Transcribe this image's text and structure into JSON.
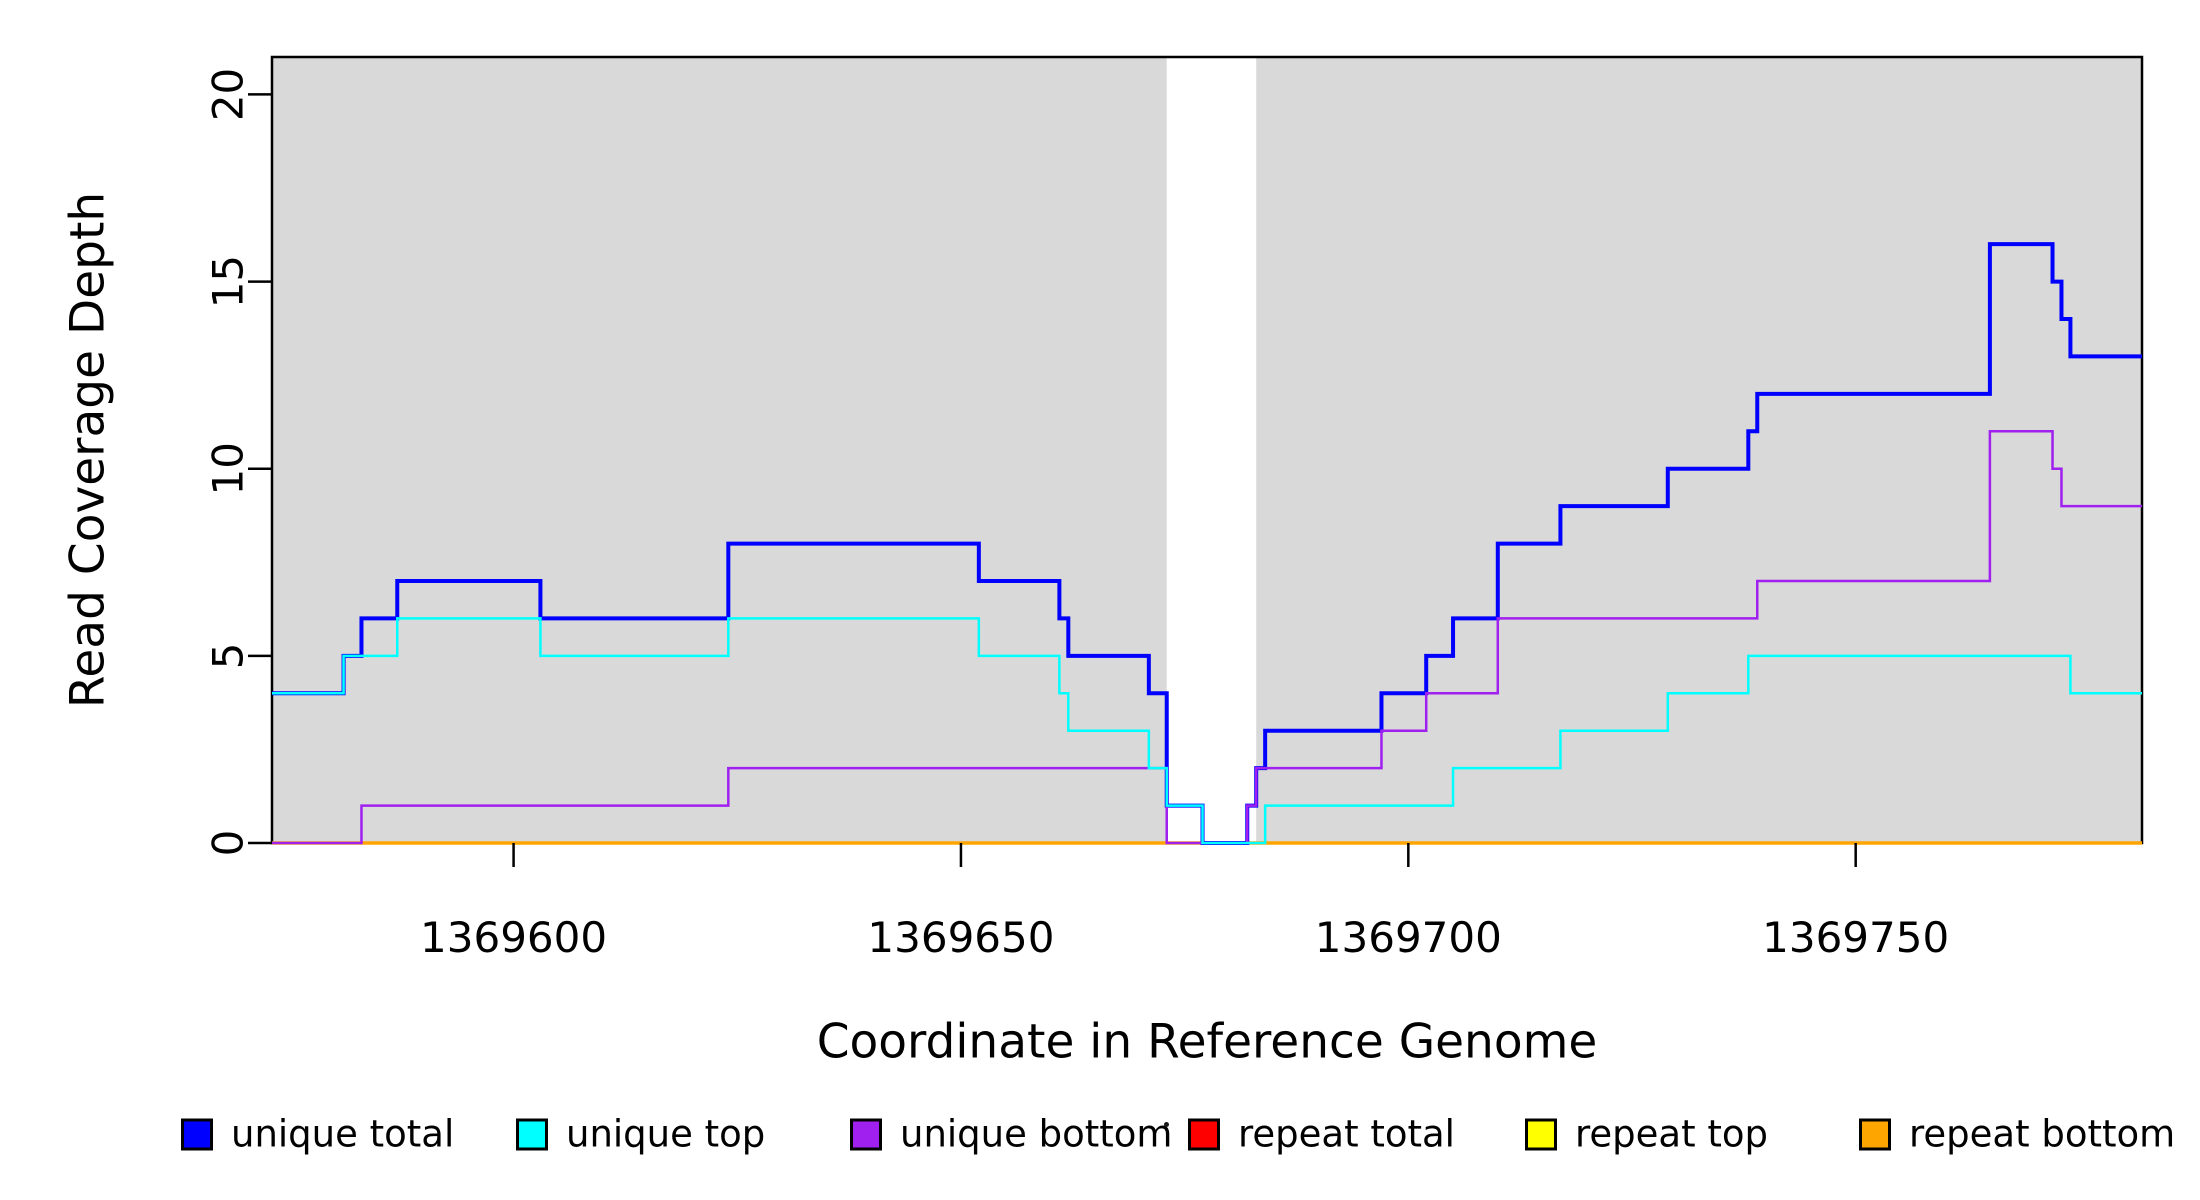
{
  "figure": {
    "background": "#FFFFFF",
    "shade_color": "#D9D9D9",
    "box_color": "#000000",
    "tick_color": "#000000",
    "text_color": "#000000"
  },
  "chart_data": {
    "type": "line",
    "subtype": "step",
    "title": "",
    "xlabel": "Coordinate in Reference Genome",
    "ylabel": "Read Coverage Depth",
    "xlim": [
      1369573,
      1369782
    ],
    "ylim": [
      0,
      21
    ],
    "x_ticks": [
      1369600,
      1369650,
      1369700,
      1369750
    ],
    "y_ticks": [
      0,
      5,
      10,
      15,
      20
    ],
    "grid": false,
    "legend_position": "bottom",
    "shaded_regions": [
      {
        "from": 1369573,
        "to": 1369673
      },
      {
        "from": 1369683,
        "to": 1369782
      }
    ],
    "gap_region": {
      "from": 1369673,
      "to": 1369683
    },
    "series": [
      {
        "name": "unique total",
        "color": "#0000FF",
        "width": 4,
        "points": [
          [
            1369573,
            4
          ],
          [
            1369581,
            5
          ],
          [
            1369583,
            6
          ],
          [
            1369587,
            7
          ],
          [
            1369603,
            6
          ],
          [
            1369624,
            8
          ],
          [
            1369652,
            7
          ],
          [
            1369661,
            6
          ],
          [
            1369662,
            5
          ],
          [
            1369671,
            4
          ],
          [
            1369673,
            1
          ],
          [
            1369677,
            0
          ],
          [
            1369682,
            1
          ],
          [
            1369683,
            2
          ],
          [
            1369684,
            3
          ],
          [
            1369697,
            4
          ],
          [
            1369702,
            5
          ],
          [
            1369705,
            6
          ],
          [
            1369710,
            8
          ],
          [
            1369717,
            9
          ],
          [
            1369729,
            10
          ],
          [
            1369738,
            11
          ],
          [
            1369739,
            12
          ],
          [
            1369765,
            16
          ],
          [
            1369772,
            15
          ],
          [
            1369773,
            14
          ],
          [
            1369774,
            13
          ]
        ]
      },
      {
        "name": "unique top",
        "color": "#00FFFF",
        "width": 2.5,
        "points": [
          [
            1369573,
            4
          ],
          [
            1369581,
            5
          ],
          [
            1369587,
            6
          ],
          [
            1369603,
            5
          ],
          [
            1369624,
            6
          ],
          [
            1369652,
            5
          ],
          [
            1369661,
            4
          ],
          [
            1369662,
            3
          ],
          [
            1369671,
            2
          ],
          [
            1369673,
            1
          ],
          [
            1369677,
            0
          ],
          [
            1369684,
            1
          ],
          [
            1369705,
            2
          ],
          [
            1369717,
            3
          ],
          [
            1369729,
            4
          ],
          [
            1369738,
            5
          ],
          [
            1369774,
            4
          ]
        ]
      },
      {
        "name": "unique bottom",
        "color": "#A020F0",
        "width": 2.5,
        "points": [
          [
            1369573,
            0
          ],
          [
            1369583,
            1
          ],
          [
            1369624,
            2
          ],
          [
            1369673,
            0
          ],
          [
            1369682,
            1
          ],
          [
            1369683,
            2
          ],
          [
            1369697,
            3
          ],
          [
            1369702,
            4
          ],
          [
            1369710,
            6
          ],
          [
            1369739,
            7
          ],
          [
            1369765,
            11
          ],
          [
            1369772,
            10
          ],
          [
            1369773,
            9
          ]
        ]
      },
      {
        "name": "repeat total",
        "color": "#FF0000",
        "width": 2.5,
        "points": [
          [
            1369573,
            0
          ]
        ]
      },
      {
        "name": "repeat top",
        "color": "#FFFF00",
        "width": 2.5,
        "points": [
          [
            1369573,
            0
          ]
        ]
      },
      {
        "name": "repeat bottom",
        "color": "#FFA500",
        "width": 3.5,
        "points": [
          [
            1369573,
            0
          ]
        ]
      }
    ],
    "draw_order": [
      "repeat total",
      "repeat top",
      "repeat bottom",
      "unique total",
      "unique bottom",
      "unique top"
    ]
  },
  "legend": {
    "items": [
      {
        "label": "unique total",
        "color": "#0000FF"
      },
      {
        "label": "unique top",
        "color": "#00FFFF"
      },
      {
        "label": "unique bottom",
        "color": "#A020F0"
      },
      {
        "label": "repeat total",
        "color": "#FF0000"
      },
      {
        "label": "repeat top",
        "color": "#FFFF00"
      },
      {
        "label": "repeat bottom",
        "color": "#FFA500"
      }
    ]
  }
}
